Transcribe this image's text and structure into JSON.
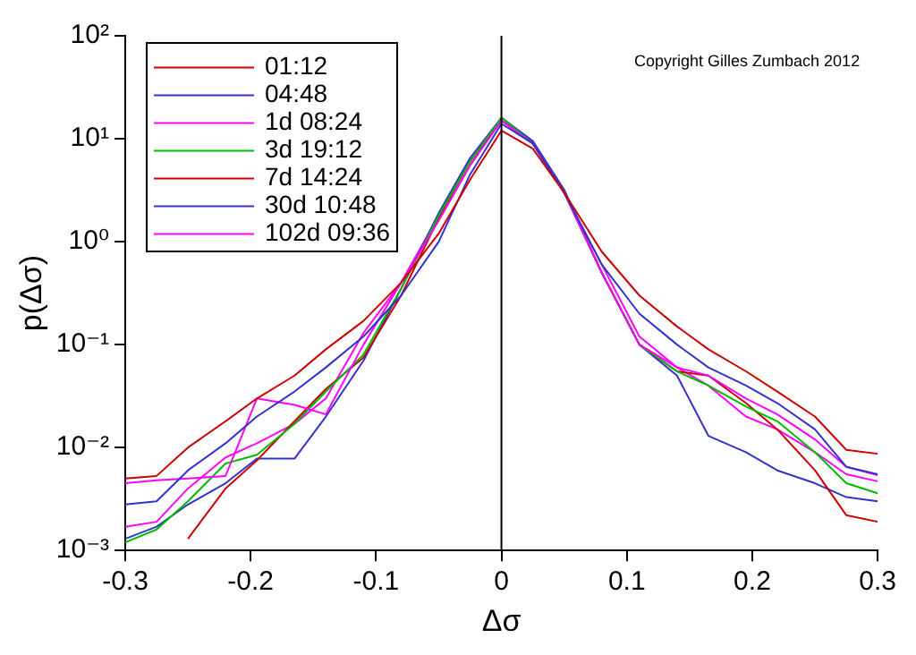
{
  "chart_data": {
    "type": "line",
    "xlabel": "Δσ",
    "ylabel": "p(Δσ)",
    "annotations": [
      "Copyright Gilles Zumbach 2012"
    ],
    "x": [
      -0.3,
      -0.275,
      -0.25,
      -0.22,
      -0.195,
      -0.165,
      -0.14,
      -0.11,
      -0.08,
      -0.05,
      -0.025,
      0,
      0.025,
      0.05,
      0.08,
      0.11,
      0.14,
      0.165,
      0.195,
      0.22,
      0.25,
      0.275,
      0.3
    ],
    "series": [
      {
        "name": "01:12",
        "color": "#cc0000",
        "values": [
          0.005,
          0.0053,
          0.01,
          0.018,
          0.03,
          0.05,
          0.09,
          0.17,
          0.4,
          1.2,
          4,
          12,
          8,
          3,
          0.8,
          0.3,
          0.15,
          0.09,
          0.055,
          0.035,
          0.02,
          0.0095,
          0.0087
        ]
      },
      {
        "name": "04:48",
        "color": "#3333cc",
        "values": [
          0.0028,
          0.003,
          0.006,
          0.011,
          0.02,
          0.035,
          0.06,
          0.12,
          0.3,
          1.0,
          4.5,
          14,
          9,
          3,
          0.6,
          0.2,
          0.1,
          0.06,
          0.04,
          0.027,
          0.015,
          0.0065,
          0.0055
        ]
      },
      {
        "name": "1d 08:24",
        "color": "#ff00ff",
        "values": [
          0.0045,
          0.0048,
          0.005,
          0.0053,
          0.03,
          0.026,
          0.021,
          0.1,
          0.4,
          1.6,
          5.5,
          15,
          9,
          3,
          0.5,
          0.1,
          0.06,
          0.05,
          0.03,
          0.021,
          0.012,
          0.0065,
          0.0054
        ]
      },
      {
        "name": "3d 19:12",
        "color": "#00bb00",
        "values": [
          0.0012,
          0.0016,
          0.003,
          0.007,
          0.0085,
          0.017,
          0.035,
          0.08,
          0.35,
          1.8,
          6,
          16,
          9,
          3,
          0.5,
          0.1,
          0.055,
          0.04,
          0.025,
          0.018,
          0.009,
          0.0045,
          0.0036
        ]
      },
      {
        "name": "7d 14:24",
        "color": "#cc0000",
        "values": [
          null,
          null,
          0.0013,
          0.004,
          0.0075,
          0.018,
          0.037,
          0.075,
          0.3,
          1.7,
          6,
          15,
          9,
          3,
          0.5,
          0.1,
          0.055,
          0.05,
          0.027,
          0.015,
          0.006,
          0.0022,
          0.0019
        ]
      },
      {
        "name": "30d 10:48",
        "color": "#3333cc",
        "values": [
          0.0013,
          0.0017,
          0.0028,
          0.0045,
          0.0078,
          0.0078,
          0.02,
          0.07,
          0.35,
          1.9,
          6.5,
          16,
          9.5,
          3.2,
          0.5,
          0.1,
          0.05,
          0.013,
          0.009,
          0.006,
          0.0045,
          0.0033,
          0.003
        ]
      },
      {
        "name": "102d 09:36",
        "color": "#ff00ff",
        "values": [
          0.0017,
          0.0019,
          0.004,
          0.008,
          0.011,
          0.017,
          0.03,
          0.13,
          0.4,
          1.8,
          6,
          16,
          9,
          3,
          0.6,
          0.12,
          0.06,
          0.04,
          0.02,
          0.015,
          0.009,
          0.0055,
          0.0047
        ]
      }
    ],
    "xlim": [
      -0.3,
      0.3
    ],
    "xticks": [
      -0.3,
      -0.2,
      -0.1,
      0,
      0.1,
      0.2,
      0.3
    ],
    "ylim": [
      0.001,
      100
    ],
    "yticks": [
      {
        "value": 0.001,
        "label": "10⁻³"
      },
      {
        "value": 0.01,
        "label": "10⁻²"
      },
      {
        "value": 0.1,
        "label": "10⁻¹"
      },
      {
        "value": 1,
        "label": "10⁰"
      },
      {
        "value": 10,
        "label": "10¹"
      },
      {
        "value": 100,
        "label": "10²"
      }
    ],
    "log": "y",
    "ref_lines": [
      {
        "axis": "x",
        "value": 0,
        "color": "#000000"
      }
    ],
    "grid": false,
    "legend": "top left",
    "marker": "none",
    "line_style": "solid"
  }
}
